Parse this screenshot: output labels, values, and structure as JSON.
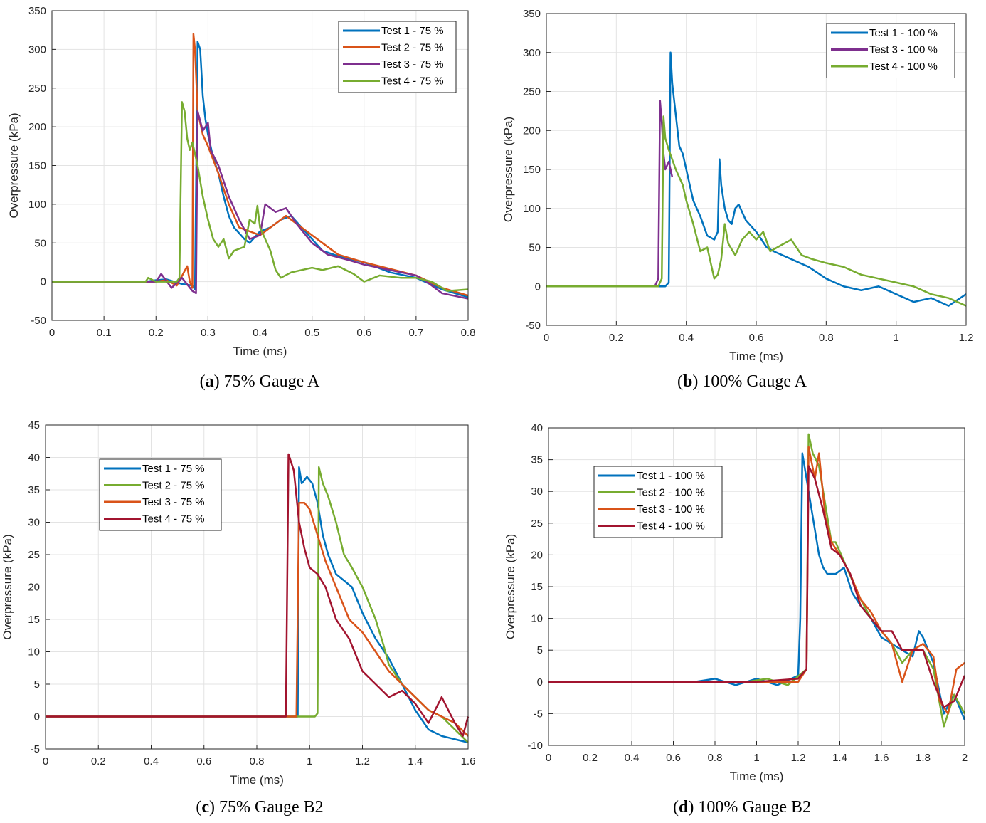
{
  "chart_data": [
    {
      "type": "line",
      "x_label": "Time (ms)",
      "y_label": "Overpressure (kPa)",
      "caption": [
        "(",
        "a",
        ") 75% Gauge A"
      ],
      "xlim": [
        0,
        0.8
      ],
      "xticks": [
        0,
        0.1,
        0.2,
        0.3,
        0.4,
        0.5,
        0.6,
        0.7,
        0.8
      ],
      "ylim": [
        -50,
        350
      ],
      "yticks": [
        -50,
        0,
        50,
        100,
        150,
        200,
        250,
        300,
        350
      ],
      "grid": true,
      "legend": "upper right",
      "series": [
        {
          "name": "Test 1 - 75 %",
          "color": "#0072bd",
          "x": [
            0,
            0.18,
            0.2,
            0.22,
            0.25,
            0.27,
            0.275,
            0.28,
            0.285,
            0.29,
            0.295,
            0.3,
            0.31,
            0.32,
            0.33,
            0.34,
            0.35,
            0.37,
            0.38,
            0.4,
            0.42,
            0.44,
            0.46,
            0.48,
            0.5,
            0.52,
            0.55,
            0.6,
            0.65,
            0.7,
            0.75,
            0.8
          ],
          "values": [
            0,
            0,
            2,
            3,
            -3,
            -5,
            -10,
            310,
            300,
            240,
            210,
            190,
            160,
            140,
            110,
            85,
            70,
            55,
            50,
            65,
            70,
            80,
            85,
            70,
            55,
            40,
            33,
            25,
            12,
            5,
            -10,
            -20
          ]
        },
        {
          "name": "Test 2 - 75 %",
          "color": "#d95319",
          "x": [
            0,
            0.2,
            0.22,
            0.24,
            0.26,
            0.265,
            0.27,
            0.272,
            0.275,
            0.28,
            0.29,
            0.3,
            0.32,
            0.34,
            0.36,
            0.4,
            0.45,
            0.5,
            0.55,
            0.6,
            0.7,
            0.75,
            0.8
          ],
          "values": [
            0,
            0,
            2,
            -5,
            20,
            0,
            -8,
            320,
            300,
            220,
            190,
            175,
            140,
            100,
            70,
            60,
            85,
            60,
            35,
            25,
            8,
            -8,
            -18
          ]
        },
        {
          "name": "Test 3 - 75 %",
          "color": "#7e2f8e",
          "x": [
            0,
            0.2,
            0.21,
            0.23,
            0.25,
            0.27,
            0.277,
            0.28,
            0.29,
            0.3,
            0.305,
            0.32,
            0.34,
            0.36,
            0.38,
            0.4,
            0.41,
            0.43,
            0.45,
            0.47,
            0.5,
            0.53,
            0.57,
            0.6,
            0.65,
            0.7,
            0.72,
            0.75,
            0.8
          ],
          "values": [
            0,
            0,
            10,
            -8,
            5,
            -12,
            -15,
            220,
            195,
            205,
            170,
            150,
            110,
            80,
            55,
            60,
            100,
            90,
            95,
            75,
            50,
            35,
            28,
            22,
            15,
            8,
            0,
            -15,
            -22
          ]
        },
        {
          "name": "Test 4 - 75 %",
          "color": "#77ac30",
          "x": [
            0,
            0.18,
            0.185,
            0.2,
            0.24,
            0.245,
            0.25,
            0.255,
            0.26,
            0.265,
            0.27,
            0.28,
            0.29,
            0.3,
            0.31,
            0.32,
            0.33,
            0.34,
            0.35,
            0.37,
            0.38,
            0.39,
            0.395,
            0.4,
            0.42,
            0.43,
            0.44,
            0.46,
            0.48,
            0.5,
            0.52,
            0.55,
            0.58,
            0.6,
            0.63,
            0.67,
            0.7,
            0.73,
            0.76,
            0.8
          ],
          "values": [
            0,
            0,
            5,
            0,
            0,
            5,
            232,
            220,
            185,
            170,
            180,
            150,
            110,
            80,
            55,
            45,
            55,
            30,
            40,
            45,
            80,
            75,
            98,
            70,
            40,
            15,
            5,
            12,
            15,
            18,
            15,
            20,
            10,
            0,
            8,
            5,
            5,
            0,
            -12,
            -10
          ]
        }
      ]
    },
    {
      "type": "line",
      "x_label": "Time (ms)",
      "y_label": "Overpressure (kPa)",
      "caption": [
        "(",
        "b",
        ") 100% Gauge A"
      ],
      "xlim": [
        0,
        1.2
      ],
      "xticks": [
        0,
        0.2,
        0.4,
        0.6,
        0.8,
        1,
        1.2
      ],
      "ylim": [
        -50,
        350
      ],
      "yticks": [
        -50,
        0,
        50,
        100,
        150,
        200,
        250,
        300,
        350
      ],
      "grid": true,
      "legend": "upper right",
      "series": [
        {
          "name": "Test 1 - 100 %",
          "color": "#0072bd",
          "x": [
            0,
            0.34,
            0.35,
            0.355,
            0.36,
            0.37,
            0.38,
            0.39,
            0.4,
            0.42,
            0.44,
            0.46,
            0.48,
            0.49,
            0.495,
            0.5,
            0.51,
            0.52,
            0.53,
            0.54,
            0.55,
            0.57,
            0.6,
            0.63,
            0.65,
            0.7,
            0.75,
            0.8,
            0.85,
            0.9,
            0.95,
            1,
            1.05,
            1.1,
            1.15,
            1.2
          ],
          "values": [
            0,
            0,
            5,
            300,
            260,
            220,
            180,
            170,
            150,
            110,
            90,
            65,
            60,
            70,
            163,
            130,
            100,
            85,
            80,
            100,
            105,
            85,
            70,
            50,
            45,
            35,
            25,
            10,
            0,
            -5,
            0,
            -10,
            -20,
            -15,
            -25,
            -10
          ]
        },
        {
          "name": "Test 3 - 100 %",
          "color": "#7e2f8e",
          "x": [
            0,
            0.31,
            0.32,
            0.325,
            0.33,
            0.335,
            0.34,
            0.35,
            0.36
          ],
          "values": [
            0,
            0,
            10,
            238,
            210,
            170,
            150,
            160,
            140
          ]
        },
        {
          "name": "Test 4 - 100 %",
          "color": "#77ac30",
          "x": [
            0,
            0.32,
            0.33,
            0.335,
            0.34,
            0.35,
            0.37,
            0.39,
            0.4,
            0.42,
            0.44,
            0.46,
            0.47,
            0.48,
            0.49,
            0.5,
            0.51,
            0.52,
            0.54,
            0.56,
            0.58,
            0.6,
            0.62,
            0.64,
            0.66,
            0.68,
            0.7,
            0.73,
            0.76,
            0.8,
            0.85,
            0.9,
            0.95,
            1,
            1.05,
            1.1,
            1.15,
            1.2
          ],
          "values": [
            0,
            0,
            10,
            218,
            190,
            175,
            150,
            130,
            110,
            80,
            45,
            50,
            30,
            10,
            15,
            35,
            80,
            55,
            40,
            60,
            70,
            60,
            70,
            45,
            50,
            55,
            60,
            40,
            35,
            30,
            25,
            15,
            10,
            5,
            0,
            -10,
            -15,
            -25
          ]
        }
      ]
    },
    {
      "type": "line",
      "x_label": "Time (ms)",
      "y_label": "Overpressure (kPa)",
      "caption": [
        "(",
        "c",
        ") 75% Gauge B2"
      ],
      "xlim": [
        0,
        1.6
      ],
      "xticks": [
        0,
        0.2,
        0.4,
        0.6,
        0.8,
        1,
        1.2,
        1.4,
        1.6
      ],
      "ylim": [
        -5,
        45
      ],
      "yticks": [
        -5,
        0,
        5,
        10,
        15,
        20,
        25,
        30,
        35,
        40,
        45
      ],
      "grid": true,
      "legend": "upper left",
      "series": [
        {
          "name": "Test 1 - 75 %",
          "color": "#0072bd",
          "x": [
            0,
            0.94,
            0.955,
            0.96,
            0.97,
            0.99,
            1.01,
            1.03,
            1.05,
            1.07,
            1.1,
            1.13,
            1.16,
            1.2,
            1.25,
            1.3,
            1.35,
            1.4,
            1.45,
            1.5,
            1.55,
            1.6
          ],
          "values": [
            0,
            0,
            0,
            38.5,
            36,
            37,
            36,
            33,
            28,
            25,
            22,
            21,
            20,
            16,
            12,
            9,
            5,
            1,
            -2,
            -3,
            -3.5,
            -4
          ]
        },
        {
          "name": "Test 2 - 75 %",
          "color": "#77ac30",
          "x": [
            0,
            1.02,
            1.03,
            1.035,
            1.05,
            1.07,
            1.1,
            1.13,
            1.16,
            1.2,
            1.23,
            1.25,
            1.28,
            1.3,
            1.35,
            1.4,
            1.45,
            1.5,
            1.55,
            1.6
          ],
          "values": [
            0,
            0,
            0.5,
            38.5,
            36,
            34,
            30,
            25,
            23,
            20,
            17,
            15,
            11,
            8,
            5,
            3,
            1,
            0,
            -2,
            -4
          ]
        },
        {
          "name": "Test 3 - 75 %",
          "color": "#d95319",
          "x": [
            0,
            0.95,
            0.96,
            0.98,
            1,
            1.03,
            1.06,
            1.1,
            1.15,
            1.2,
            1.25,
            1.3,
            1.35,
            1.4,
            1.45,
            1.5,
            1.55,
            1.6
          ],
          "values": [
            0,
            0,
            33,
            33,
            32,
            28,
            24,
            20,
            15,
            13,
            10,
            7,
            5,
            3,
            1,
            0,
            -1,
            -3
          ]
        },
        {
          "name": "Test 4 - 75 %",
          "color": "#a2142f",
          "x": [
            0,
            0.91,
            0.92,
            0.94,
            0.96,
            0.98,
            1,
            1.03,
            1.06,
            1.1,
            1.15,
            1.2,
            1.25,
            1.3,
            1.35,
            1.4,
            1.45,
            1.5,
            1.55,
            1.58,
            1.6
          ],
          "values": [
            0,
            0,
            40.5,
            38,
            30,
            26,
            23,
            22,
            20,
            15,
            12,
            7,
            5,
            3,
            4,
            2,
            -1,
            3,
            -1,
            -3,
            0
          ]
        }
      ]
    },
    {
      "type": "line",
      "x_label": "Time (ms)",
      "y_label": "Overpressure (kPa)",
      "caption": [
        "(",
        "d",
        ") 100% Gauge B2"
      ],
      "xlim": [
        0,
        2
      ],
      "xticks": [
        0,
        0.2,
        0.4,
        0.6,
        0.8,
        1,
        1.2,
        1.4,
        1.6,
        1.8,
        2
      ],
      "ylim": [
        -10,
        40
      ],
      "yticks": [
        -10,
        -5,
        0,
        5,
        10,
        15,
        20,
        25,
        30,
        35,
        40
      ],
      "grid": true,
      "legend": "upper left",
      "series": [
        {
          "name": "Test 1 - 100 %",
          "color": "#0072bd",
          "x": [
            0,
            0.7,
            0.8,
            0.9,
            1,
            1.1,
            1.2,
            1.21,
            1.22,
            1.24,
            1.26,
            1.28,
            1.3,
            1.32,
            1.34,
            1.38,
            1.42,
            1.46,
            1.5,
            1.55,
            1.6,
            1.65,
            1.7,
            1.75,
            1.78,
            1.8,
            1.85,
            1.9,
            1.95,
            2
          ],
          "values": [
            0,
            0,
            0.5,
            -0.5,
            0.5,
            -0.5,
            1,
            10,
            36,
            32,
            28,
            24,
            20,
            18,
            17,
            17,
            18,
            14,
            12,
            10,
            7,
            6,
            5,
            4,
            8,
            7,
            3,
            -5,
            -2,
            -6
          ]
        },
        {
          "name": "Test 2 - 100 %",
          "color": "#77ac30",
          "x": [
            0,
            0.8,
            0.95,
            1.05,
            1.15,
            1.24,
            1.25,
            1.27,
            1.3,
            1.33,
            1.36,
            1.38,
            1.42,
            1.46,
            1.5,
            1.55,
            1.6,
            1.65,
            1.7,
            1.75,
            1.8,
            1.85,
            1.9,
            1.95,
            2
          ],
          "values": [
            0,
            0,
            0,
            0.5,
            -0.5,
            2,
            39,
            36,
            34,
            28,
            22,
            22,
            19,
            16,
            13,
            10,
            8,
            6,
            3,
            5,
            5,
            2,
            -7,
            -2,
            -5
          ]
        },
        {
          "name": "Test 3 - 100 %",
          "color": "#d95319",
          "x": [
            0,
            1,
            1.2,
            1.24,
            1.25,
            1.28,
            1.3,
            1.33,
            1.36,
            1.4,
            1.45,
            1.5,
            1.55,
            1.6,
            1.65,
            1.7,
            1.75,
            1.8,
            1.85,
            1.88,
            1.92,
            1.96,
            2
          ],
          "values": [
            0,
            0,
            0,
            2,
            37,
            32,
            36,
            26,
            22,
            20,
            17,
            13,
            11,
            8,
            6,
            0,
            5,
            6,
            4,
            -3,
            -5,
            2,
            3
          ]
        },
        {
          "name": "Test 4 - 100 %",
          "color": "#a2142f",
          "x": [
            0,
            1,
            1.2,
            1.24,
            1.25,
            1.28,
            1.32,
            1.36,
            1.4,
            1.45,
            1.5,
            1.55,
            1.6,
            1.65,
            1.7,
            1.75,
            1.8,
            1.85,
            1.9,
            1.95,
            2
          ],
          "values": [
            0,
            0,
            0.5,
            2,
            34,
            32,
            27,
            21,
            20,
            17,
            12,
            10,
            8,
            8,
            5,
            5,
            5,
            0,
            -4,
            -3,
            1
          ]
        }
      ]
    }
  ]
}
